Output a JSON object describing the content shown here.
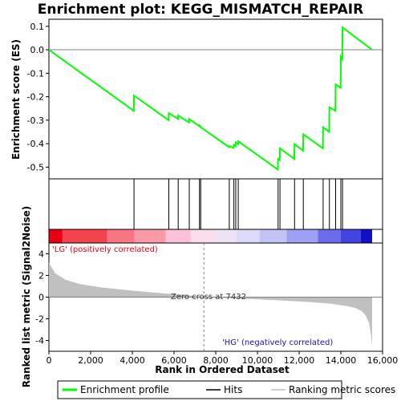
{
  "chart_data": {
    "type": "line",
    "title": "Enrichment plot: KEGG_MISMATCH_REPAIR",
    "xlabel": "Rank in Ordered Dataset",
    "ylabel_top": "Enrichment score (ES)",
    "ylabel_bottom": "Ranked list metric (Signal2Noise)",
    "xlim": [
      0,
      15500
    ],
    "x_ticks": [
      0,
      2000,
      4000,
      6000,
      8000,
      10000,
      12000,
      14000,
      16000
    ],
    "x_tick_labels": [
      "0",
      "2,000",
      "4,000",
      "6,000",
      "8,000",
      "10,000",
      "12,000",
      "14,000",
      "16,000"
    ],
    "es_ylim": [
      -0.55,
      0.13
    ],
    "es_ticks": [
      0.1,
      0.0,
      -0.1,
      -0.2,
      -0.3,
      -0.4,
      -0.5
    ],
    "es_tick_labels": [
      "0.1",
      "0.0",
      "-0.1",
      "-0.2",
      "-0.3",
      "-0.4",
      "-0.5"
    ],
    "metric_ylim": [
      -5,
      5
    ],
    "metric_ticks": [
      4,
      2,
      0,
      -2,
      -4
    ],
    "metric_tick_labels": [
      "4",
      "2",
      "0",
      "-2",
      "-4"
    ],
    "hits": [
      4080,
      5750,
      6200,
      6730,
      7220,
      7280,
      8650,
      8870,
      8960,
      9080,
      10990,
      11080,
      11780,
      12200,
      13150,
      13450,
      13750,
      14000,
      14080
    ],
    "series": [
      {
        "name": "Enrichment profile",
        "color": "#00ff00",
        "x": [
          0,
          4070,
          4080,
          5740,
          5750,
          6190,
          6200,
          6720,
          6730,
          7210,
          7220,
          7270,
          7280,
          8640,
          8650,
          8860,
          8870,
          8950,
          8960,
          9070,
          9080,
          10980,
          10990,
          11070,
          11080,
          11770,
          11780,
          12190,
          12200,
          13140,
          13150,
          13440,
          13450,
          13740,
          13750,
          13990,
          14000,
          14070,
          14080,
          15500
        ],
        "y": [
          0.0,
          -0.26,
          -0.195,
          -0.3,
          -0.27,
          -0.295,
          -0.28,
          -0.31,
          -0.295,
          -0.325,
          -0.322,
          -0.326,
          -0.33,
          -0.415,
          -0.41,
          -0.418,
          -0.405,
          -0.41,
          -0.395,
          -0.402,
          -0.39,
          -0.51,
          -0.465,
          -0.47,
          -0.42,
          -0.465,
          -0.402,
          -0.43,
          -0.36,
          -0.42,
          -0.33,
          -0.35,
          -0.245,
          -0.26,
          -0.148,
          -0.162,
          -0.03,
          -0.04,
          0.095,
          0.0
        ]
      }
    ],
    "metric_profile": {
      "x": [
        0,
        300,
        800,
        1500,
        2500,
        4000,
        5500,
        6800,
        7432,
        9000,
        11000,
        12500,
        13500,
        14200,
        14700,
        15000,
        15200,
        15350,
        15450,
        15500
      ],
      "y": [
        3.2,
        2.2,
        1.6,
        1.2,
        0.9,
        0.6,
        0.35,
        0.15,
        0.0,
        -0.12,
        -0.3,
        -0.45,
        -0.6,
        -0.8,
        -1.0,
        -1.3,
        -1.7,
        -2.4,
        -3.5,
        -4.6
      ]
    },
    "color_bar": [
      {
        "from": 0,
        "to": 650,
        "color": "#e8000e"
      },
      {
        "from": 650,
        "to": 2800,
        "color": "#f2434f"
      },
      {
        "from": 2800,
        "to": 4100,
        "color": "#f87582"
      },
      {
        "from": 4100,
        "to": 5600,
        "color": "#fa9aa6"
      },
      {
        "from": 5600,
        "to": 6800,
        "color": "#fcc0da"
      },
      {
        "from": 6800,
        "to": 7900,
        "color": "#fbdcec"
      },
      {
        "from": 7900,
        "to": 9000,
        "color": "#ede3f5"
      },
      {
        "from": 9000,
        "to": 10100,
        "color": "#dcdafa"
      },
      {
        "from": 10100,
        "to": 11400,
        "color": "#c2c3f7"
      },
      {
        "from": 11400,
        "to": 12900,
        "color": "#9d9ff2"
      },
      {
        "from": 12900,
        "to": 14000,
        "color": "#6c6ceb"
      },
      {
        "from": 14000,
        "to": 14950,
        "color": "#4444e3"
      },
      {
        "from": 14950,
        "to": 15500,
        "color": "#1010c8"
      }
    ],
    "annotations": {
      "left_label": "'LG' (positively correlated)",
      "right_label": "'HG' (negatively correlated)",
      "zero_cross": "Zero cross at 7432",
      "zero_cross_x": 7432
    },
    "legend": [
      {
        "label": "Enrichment profile",
        "color": "#00ff00",
        "style": "thick"
      },
      {
        "label": "Hits",
        "color": "#000000",
        "style": "thin"
      },
      {
        "label": "Ranking metric scores",
        "color": "#c0c0c0",
        "style": "thin"
      }
    ],
    "legend_position": "bottom"
  }
}
